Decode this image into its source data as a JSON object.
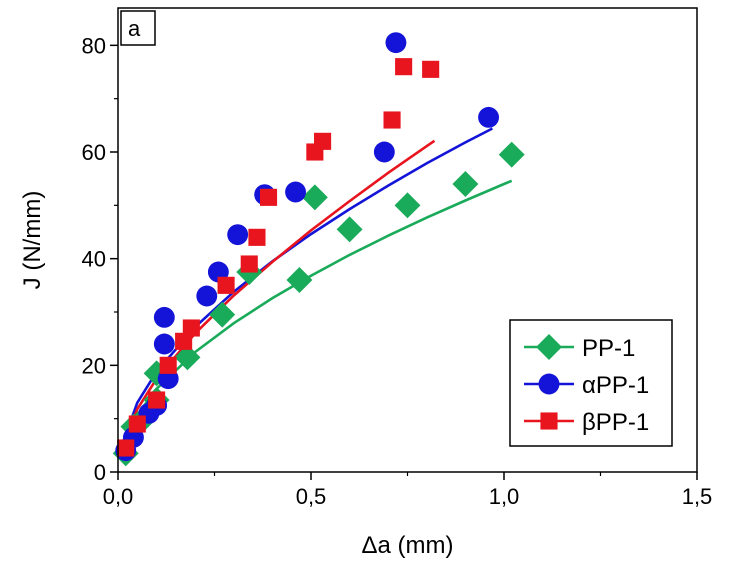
{
  "chart_data": {
    "type": "scatter",
    "panel_label": "a",
    "xlabel": "Δa (mm)",
    "ylabel": "J (N/mm)",
    "xlim": [
      0,
      1.5
    ],
    "ylim": [
      0,
      87
    ],
    "xticks": [
      0,
      0.5,
      1.0,
      1.5
    ],
    "xtick_labels": [
      "0,0",
      "0,5",
      "1,0",
      "1,5"
    ],
    "yticks": [
      0,
      20,
      40,
      60,
      80
    ],
    "ytick_labels": [
      "0",
      "20",
      "40",
      "60",
      "80"
    ],
    "grid": false,
    "legend_position": "bottom-right",
    "series": [
      {
        "name": "PP-1",
        "color": "#1aab5a",
        "marker": "diamond",
        "points": [
          [
            0.02,
            3.5
          ],
          [
            0.04,
            8.5
          ],
          [
            0.06,
            9.5
          ],
          [
            0.1,
            13.5
          ],
          [
            0.1,
            18.5
          ],
          [
            0.18,
            21.5
          ],
          [
            0.27,
            29.5
          ],
          [
            0.34,
            37.5
          ],
          [
            0.47,
            36.0
          ],
          [
            0.51,
            51.5
          ],
          [
            0.6,
            45.5
          ],
          [
            0.75,
            50.0
          ],
          [
            0.9,
            54.0
          ],
          [
            1.02,
            59.5
          ]
        ],
        "fit": [
          [
            0.01,
            4.0
          ],
          [
            0.05,
            10.7
          ],
          [
            0.1,
            15.6
          ],
          [
            0.2,
            22.5
          ],
          [
            0.3,
            27.9
          ],
          [
            0.4,
            32.6
          ],
          [
            0.5,
            36.8
          ],
          [
            0.6,
            40.7
          ],
          [
            0.7,
            44.3
          ],
          [
            0.8,
            47.7
          ],
          [
            0.9,
            50.9
          ],
          [
            1.0,
            54.0
          ],
          [
            1.02,
            54.6
          ]
        ]
      },
      {
        "name": "αPP-1",
        "color": "#1414d8",
        "marker": "circle",
        "points": [
          [
            0.02,
            4.0
          ],
          [
            0.04,
            6.5
          ],
          [
            0.08,
            11.0
          ],
          [
            0.1,
            12.5
          ],
          [
            0.12,
            24.0
          ],
          [
            0.12,
            29.0
          ],
          [
            0.13,
            17.5
          ],
          [
            0.23,
            33.0
          ],
          [
            0.26,
            37.5
          ],
          [
            0.31,
            44.5
          ],
          [
            0.38,
            52.0
          ],
          [
            0.46,
            52.5
          ],
          [
            0.69,
            60.0
          ],
          [
            0.72,
            80.5
          ],
          [
            0.96,
            66.5
          ]
        ],
        "fit": [
          [
            0.01,
            5.0
          ],
          [
            0.05,
            13.0
          ],
          [
            0.1,
            18.8
          ],
          [
            0.2,
            27.2
          ],
          [
            0.3,
            33.8
          ],
          [
            0.4,
            39.5
          ],
          [
            0.5,
            44.6
          ],
          [
            0.6,
            49.3
          ],
          [
            0.7,
            53.7
          ],
          [
            0.8,
            57.9
          ],
          [
            0.9,
            61.8
          ],
          [
            0.97,
            64.4
          ]
        ]
      },
      {
        "name": "βPP-1",
        "color": "#e8141e",
        "marker": "square",
        "points": [
          [
            0.02,
            4.5
          ],
          [
            0.05,
            9.0
          ],
          [
            0.1,
            13.5
          ],
          [
            0.13,
            20.0
          ],
          [
            0.17,
            24.5
          ],
          [
            0.19,
            27.0
          ],
          [
            0.28,
            35.0
          ],
          [
            0.34,
            39.0
          ],
          [
            0.36,
            44.0
          ],
          [
            0.39,
            51.5
          ],
          [
            0.51,
            60.0
          ],
          [
            0.53,
            62.0
          ],
          [
            0.71,
            66.0
          ],
          [
            0.74,
            76.0
          ],
          [
            0.81,
            75.5
          ]
        ],
        "fit": [
          [
            0.01,
            4.5
          ],
          [
            0.05,
            11.8
          ],
          [
            0.1,
            17.5
          ],
          [
            0.2,
            26.0
          ],
          [
            0.3,
            33.1
          ],
          [
            0.4,
            39.4
          ],
          [
            0.5,
            45.3
          ],
          [
            0.6,
            50.8
          ],
          [
            0.7,
            56.1
          ],
          [
            0.8,
            61.1
          ],
          [
            0.82,
            62.1
          ]
        ]
      }
    ]
  }
}
